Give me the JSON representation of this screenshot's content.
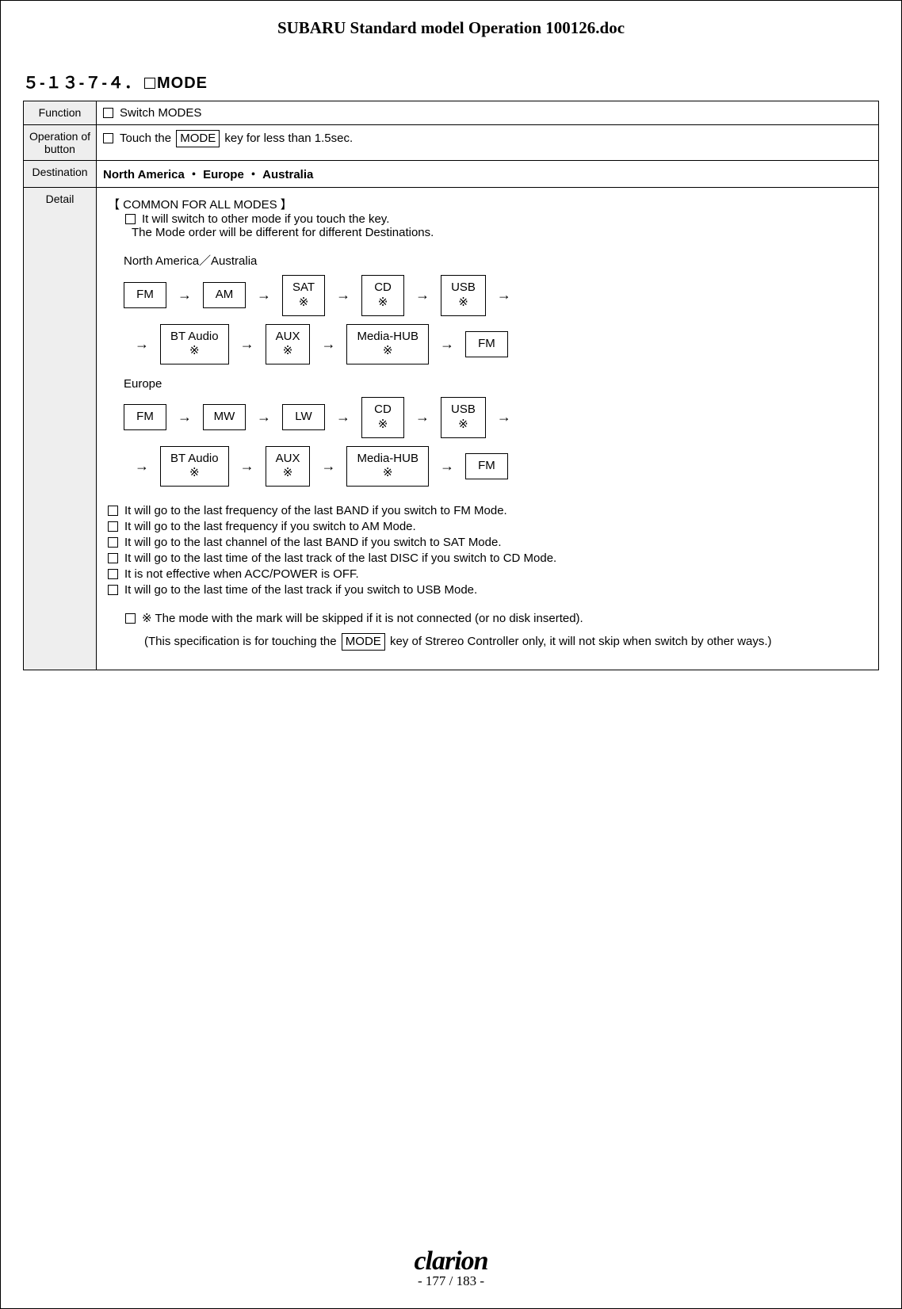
{
  "doc_title": "SUBARU Standard model Operation 100126.doc",
  "section_number": "５-１３-７-４．",
  "section_title": "MODE",
  "rows": {
    "function": {
      "label": "Function",
      "text": "Switch MODES"
    },
    "operation": {
      "label": "Operation of button",
      "pre": "Touch the  ",
      "key": "MODE",
      "post": " key for less than 1.5sec."
    },
    "destination": {
      "label": "Destination",
      "text": "North America  ・  Europe  ・  Australia"
    },
    "detail_label": "Detail"
  },
  "detail": {
    "common_header": "【 COMMON FOR ALL MODES 】",
    "line1": "It will switch to other mode if you touch the key.",
    "line2": "The Mode order will be different for different Destinations.",
    "region1_label": "North America／Australia",
    "region1_flow1": [
      {
        "t": "FM"
      },
      {
        "t": "AM"
      },
      {
        "t": "SAT",
        "s": "※"
      },
      {
        "t": "CD",
        "s": "※"
      },
      {
        "t": "USB",
        "s": "※"
      }
    ],
    "region1_flow2_lead_arrow": true,
    "region1_flow2": [
      {
        "t": "BT Audio",
        "s": "※"
      },
      {
        "t": "AUX",
        "s": "※"
      },
      {
        "t": "Media-HUB",
        "s": "※"
      },
      {
        "t": "FM"
      }
    ],
    "region2_label": "Europe",
    "region2_flow1": [
      {
        "t": "FM"
      },
      {
        "t": "MW"
      },
      {
        "t": "LW"
      },
      {
        "t": "CD",
        "s": "※"
      },
      {
        "t": "USB",
        "s": "※"
      }
    ],
    "region2_flow2_lead_arrow": true,
    "region2_flow2": [
      {
        "t": "BT Audio",
        "s": "※"
      },
      {
        "t": "AUX",
        "s": "※"
      },
      {
        "t": "Media-HUB",
        "s": "※"
      },
      {
        "t": "FM"
      }
    ],
    "bullets": [
      "It will go to the last frequency of the last BAND if you switch to FM Mode.",
      "It will go to the last frequency if you switch to AM Mode.",
      "It will go to the last channel of the last BAND if you switch to SAT Mode.",
      "It will go to the last time of the last track of the last DISC if you switch to CD Mode.",
      "It is not effective when ACC/POWER is OFF.",
      "It will go to the last time of the last track if you switch to USB Mode."
    ],
    "note_line": "※ The mode with the mark will be skipped if it is not connected (or no disk inserted).",
    "note2_pre": "(This specification is for touching the ",
    "note2_key": "MODE",
    "note2_post": " key of Strereo Controller only, it will not skip when switch by other ways.)"
  },
  "footer": {
    "brand": "clarion",
    "page": "- 177 / 183 -"
  },
  "arrow_glyph": "→"
}
